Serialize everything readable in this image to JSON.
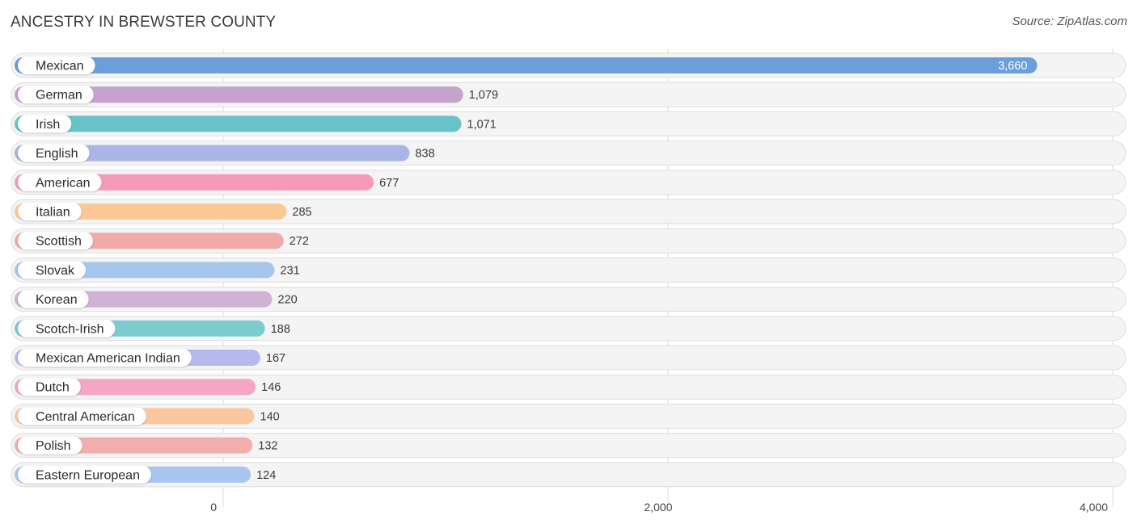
{
  "header": {
    "title": "ANCESTRY IN BREWSTER COUNTY",
    "source": "Source: ZipAtlas.com"
  },
  "chart_data": {
    "type": "bar",
    "orientation": "horizontal",
    "title": "ANCESTRY IN BREWSTER COUNTY",
    "categories": [
      "Mexican",
      "German",
      "Irish",
      "English",
      "American",
      "Italian",
      "Scottish",
      "Slovak",
      "Korean",
      "Scotch-Irish",
      "Mexican American Indian",
      "Dutch",
      "Central American",
      "Polish",
      "Eastern European"
    ],
    "values": [
      3660,
      1079,
      1071,
      838,
      677,
      285,
      272,
      231,
      220,
      188,
      167,
      146,
      140,
      132,
      124
    ],
    "value_labels": [
      "3,660",
      "1,079",
      "1,071",
      "838",
      "677",
      "285",
      "272",
      "231",
      "220",
      "188",
      "167",
      "146",
      "140",
      "132",
      "124"
    ],
    "colors": [
      "#6a9fdc",
      "#c5a3cc",
      "#68c3c8",
      "#aab4e8",
      "#f59bb9",
      "#fbc896",
      "#f0aaaa",
      "#a6c6ec",
      "#cfb2d6",
      "#7ccbcf",
      "#b6b9ec",
      "#f5a6c4",
      "#fac79f",
      "#f0aeac",
      "#a9c5ee"
    ],
    "xlim": [
      0,
      4000
    ],
    "ticks": [
      0,
      2000,
      4000
    ],
    "tick_labels": [
      "0",
      "2,000",
      "4,000"
    ],
    "xlabel": "",
    "ylabel": "",
    "grid": true
  }
}
